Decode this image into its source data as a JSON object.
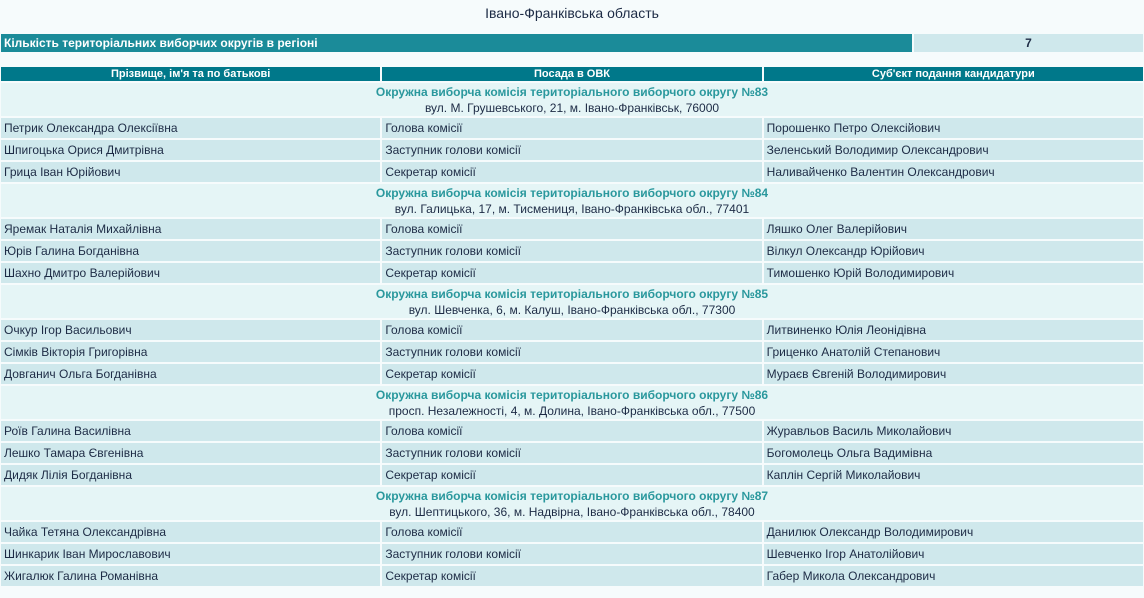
{
  "page_title": "Івано-Франківська область",
  "summary": {
    "label": "Кількість територіальних виборчих округів в регіоні",
    "value": "7"
  },
  "columns": [
    "Прізвище, ім'я та по батькові",
    "Посада в ОВК",
    "Суб'єкт подання кандидатури"
  ],
  "colors": {
    "header": "#00788a",
    "summary": "#1b8b99",
    "row": "#cfe8ec",
    "commission_row": "#e5f5f6",
    "commission_title": "#2a989d"
  },
  "commissions": [
    {
      "title": "Окружна виборча комісія територіального виборчого округу №83",
      "address": "вул. М. Грушевського, 21, м. Івано-Франківськ, 76000",
      "members": [
        {
          "name": "Петрик Олександра Олексіївна",
          "position": "Голова комісії",
          "nominator": "Порошенко Петро Олексійович"
        },
        {
          "name": "Шпигоцька Орися Дмитрівна",
          "position": "Заступник голови комісії",
          "nominator": "Зеленський Володимир Олександрович"
        },
        {
          "name": "Грица Іван Юрійович",
          "position": "Секретар комісії",
          "nominator": "Наливайченко Валентин Олександрович"
        }
      ]
    },
    {
      "title": "Окружна виборча комісія територіального виборчого округу №84",
      "address": "вул. Галицька, 17, м. Тисмениця, Івано-Франківська обл., 77401",
      "members": [
        {
          "name": "Яремак Наталія Михайлівна",
          "position": "Голова комісії",
          "nominator": "Ляшко Олег Валерійович"
        },
        {
          "name": "Юрів Галина Богданівна",
          "position": "Заступник голови комісії",
          "nominator": "Вілкул Олександр Юрійович"
        },
        {
          "name": "Шахно Дмитро Валерійович",
          "position": "Секретар комісії",
          "nominator": "Тимошенко Юрій Володимирович"
        }
      ]
    },
    {
      "title": "Окружна виборча комісія територіального виборчого округу №85",
      "address": "вул. Шевченка, 6, м. Калуш, Івано-Франківська обл., 77300",
      "members": [
        {
          "name": "Очкур Ігор Васильович",
          "position": "Голова комісії",
          "nominator": "Литвиненко Юлія Леонідівна"
        },
        {
          "name": "Сімків Вікторія Григорівна",
          "position": "Заступник голови комісії",
          "nominator": "Гриценко Анатолій Степанович"
        },
        {
          "name": "Довганич Ольга Богданівна",
          "position": "Секретар комісії",
          "nominator": "Мураєв Євгеній Володимирович"
        }
      ]
    },
    {
      "title": "Окружна виборча комісія територіального виборчого округу №86",
      "address": "просп. Незалежності, 4, м. Долина, Івано-Франківська обл., 77500",
      "members": [
        {
          "name": "Роїв Галина Василівна",
          "position": "Голова комісії",
          "nominator": "Журавльов Василь Миколайович"
        },
        {
          "name": "Лешко Тамара Євгенівна",
          "position": "Заступник голови комісії",
          "nominator": "Богомолець Ольга Вадимівна"
        },
        {
          "name": "Дидяк Лілія Богданівна",
          "position": "Секретар комісії",
          "nominator": "Каплін Сергій Миколайович"
        }
      ]
    },
    {
      "title": "Окружна виборча комісія територіального виборчого округу №87",
      "address": "вул. Шептицького, 36, м. Надвірна, Івано-Франківська обл., 78400",
      "members": [
        {
          "name": "Чайка Тетяна Олександрівна",
          "position": "Голова комісії",
          "nominator": "Данилюк Олександр Володимирович"
        },
        {
          "name": "Шинкарик Іван Мирославович",
          "position": "Заступник голови комісії",
          "nominator": "Шевченко Ігор Анатолійович"
        },
        {
          "name": "Жигалюк Галина Романівна",
          "position": "Секретар комісії",
          "nominator": "Габер Микола Олександрович"
        }
      ]
    }
  ]
}
